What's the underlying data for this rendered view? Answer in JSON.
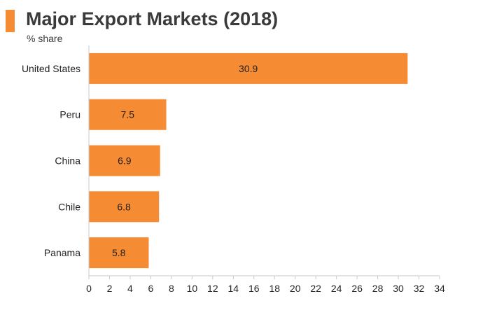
{
  "header": {
    "title": "Major Export Markets (2018)",
    "subtitle": "% share",
    "accent_color": "#f58b32"
  },
  "chart_data": {
    "type": "bar",
    "orientation": "horizontal",
    "title": "Major Export Markets (2018)",
    "subtitle": "% share",
    "xlabel": "",
    "ylabel": "",
    "categories": [
      "United States",
      "Peru",
      "China",
      "Chile",
      "Panama"
    ],
    "values": [
      30.9,
      7.5,
      6.9,
      6.8,
      5.8
    ],
    "data_labels": [
      "30.9",
      "7.5",
      "6.9",
      "6.8",
      "5.8"
    ],
    "xlim": [
      0,
      34
    ],
    "xticks": [
      0,
      2,
      4,
      6,
      8,
      10,
      12,
      14,
      16,
      18,
      20,
      22,
      24,
      26,
      28,
      30,
      32,
      34
    ],
    "grid": false,
    "legend": "none",
    "bar_color": "#f58b32",
    "axis_color": "#c8c8c8"
  }
}
